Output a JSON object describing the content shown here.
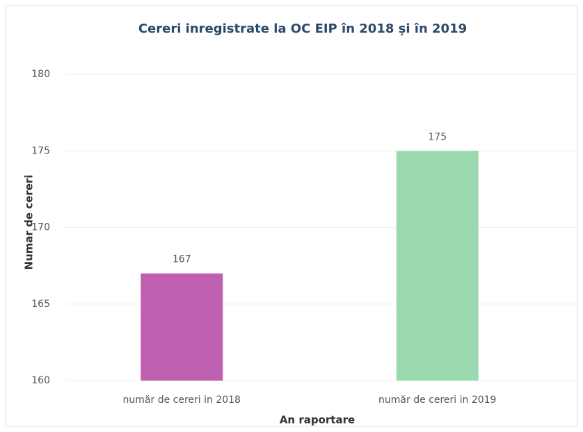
{
  "chart_data": {
    "type": "bar",
    "title": "Cereri inregistrate la OC EIP în 2018 și în 2019",
    "categories": [
      "număr de cereri in 2018",
      "număr de cereri in 2019"
    ],
    "values": [
      167,
      175
    ],
    "colors": [
      "#c060b0",
      "#9ad9ae"
    ],
    "ylim": [
      160,
      180
    ],
    "yticks": [
      160,
      165,
      170,
      175,
      180
    ],
    "grid": true,
    "x_label": "An raportare",
    "y_label": "Numar de cereri"
  }
}
